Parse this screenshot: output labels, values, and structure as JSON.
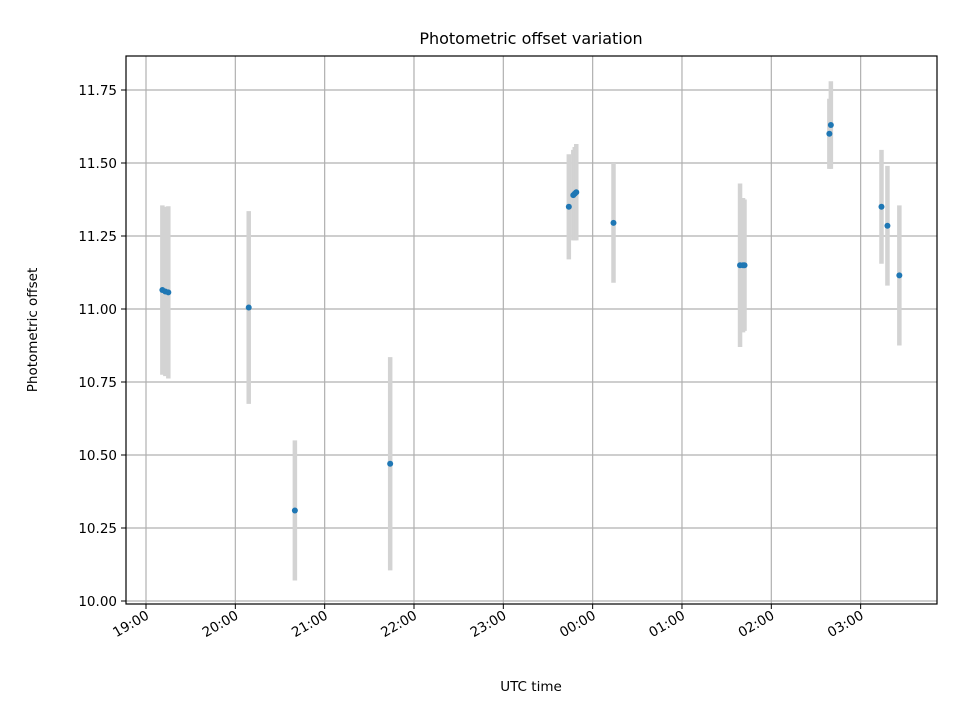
{
  "chart_data": {
    "type": "scatter",
    "title": "Photometric offset variation",
    "xlabel": "UTC time",
    "ylabel": "Photometric offset",
    "xlim": [
      "19:00",
      "03:00"
    ],
    "ylim": [
      10.0,
      11.75
    ],
    "x_ticks": [
      "19:00",
      "20:00",
      "21:00",
      "22:00",
      "23:00",
      "00:00",
      "01:00",
      "02:00",
      "03:00"
    ],
    "y_ticks": [
      "10.00",
      "10.25",
      "10.50",
      "10.75",
      "11.00",
      "11.25",
      "11.50",
      "11.75"
    ],
    "grid": true,
    "colors": {
      "point": "#1f77b4",
      "errorbar": "#d3d3d3",
      "grid": "#b0b0b0"
    },
    "series": [
      {
        "points": [
          {
            "x": "19:11",
            "y": 11.065,
            "yerr": 0.29
          },
          {
            "x": "19:13",
            "y": 11.06,
            "yerr": 0.29
          },
          {
            "x": "19:15",
            "y": 11.057,
            "yerr": 0.295
          },
          {
            "x": "20:09",
            "y": 11.005,
            "yerr": 0.33
          },
          {
            "x": "20:40",
            "y": 10.31,
            "yerr": 0.24
          },
          {
            "x": "21:44",
            "y": 10.47,
            "yerr": 0.365
          },
          {
            "x": "23:44",
            "y": 11.35,
            "yerr": 0.18
          },
          {
            "x": "23:47",
            "y": 11.39,
            "yerr": 0.155
          },
          {
            "x": "23:48",
            "y": 11.395,
            "yerr": 0.16
          },
          {
            "x": "23:49",
            "y": 11.4,
            "yerr": 0.165
          },
          {
            "x": "00:14",
            "y": 11.295,
            "yerr": 0.205
          },
          {
            "x": "01:39",
            "y": 11.15,
            "yerr": 0.28
          },
          {
            "x": "01:41",
            "y": 11.15,
            "yerr": 0.23
          },
          {
            "x": "01:42",
            "y": 11.15,
            "yerr": 0.225
          },
          {
            "x": "02:39",
            "y": 11.6,
            "yerr": 0.12
          },
          {
            "x": "02:40",
            "y": 11.63,
            "yerr": 0.15
          },
          {
            "x": "03:14",
            "y": 11.35,
            "yerr": 0.195
          },
          {
            "x": "03:18",
            "y": 11.285,
            "yerr": 0.205
          },
          {
            "x": "03:26",
            "y": 11.115,
            "yerr": 0.24
          }
        ]
      }
    ]
  }
}
